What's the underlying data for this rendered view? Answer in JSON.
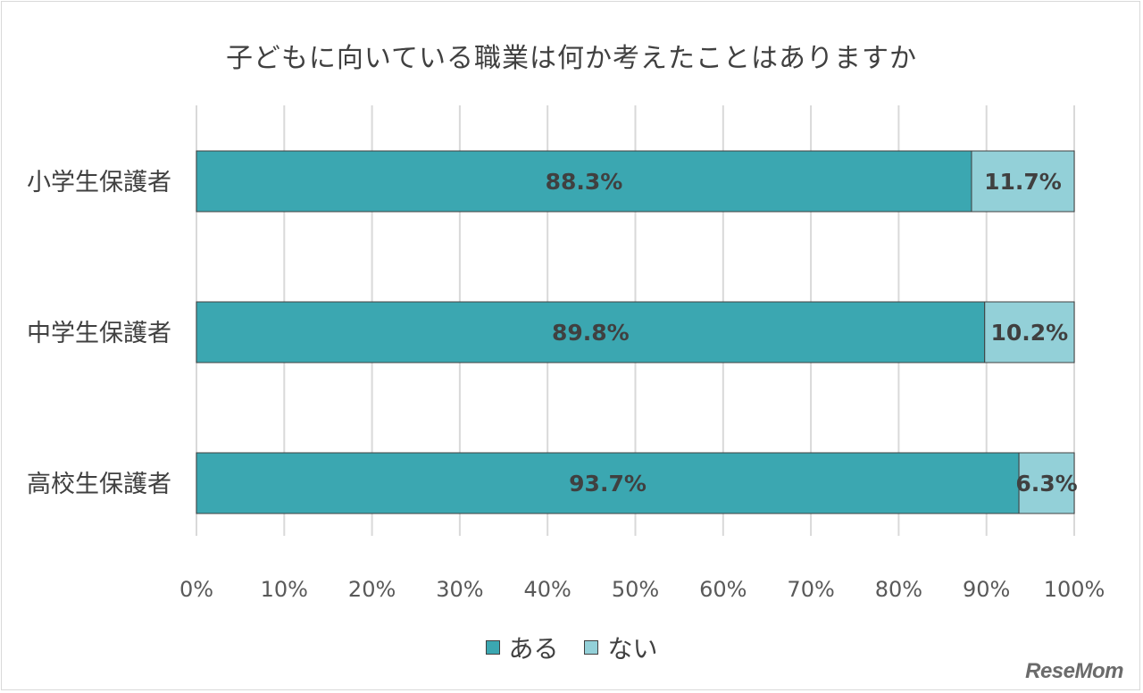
{
  "chart_data": {
    "type": "bar",
    "orientation": "horizontal",
    "stacked": true,
    "title": "子どもに向いている職業は何か考えたことはありますか",
    "categories": [
      "小学生保護者",
      "中学生保護者",
      "高校生保護者"
    ],
    "series": [
      {
        "name": "ある",
        "values": [
          88.3,
          89.8,
          93.7
        ],
        "labels": [
          "88.3%",
          "89.8%",
          "93.7%"
        ],
        "color": "#3ba7b1"
      },
      {
        "name": "ない",
        "values": [
          11.7,
          10.2,
          6.3
        ],
        "labels": [
          "11.7%",
          "10.2%",
          "6.3%"
        ],
        "color": "#93d0d8"
      }
    ],
    "xlim": [
      0,
      100
    ],
    "xticks": [
      "0%",
      "10%",
      "20%",
      "30%",
      "40%",
      "50%",
      "60%",
      "70%",
      "80%",
      "90%",
      "100%"
    ],
    "grid": true,
    "legend_position": "bottom"
  },
  "watermark": "ReseMom"
}
